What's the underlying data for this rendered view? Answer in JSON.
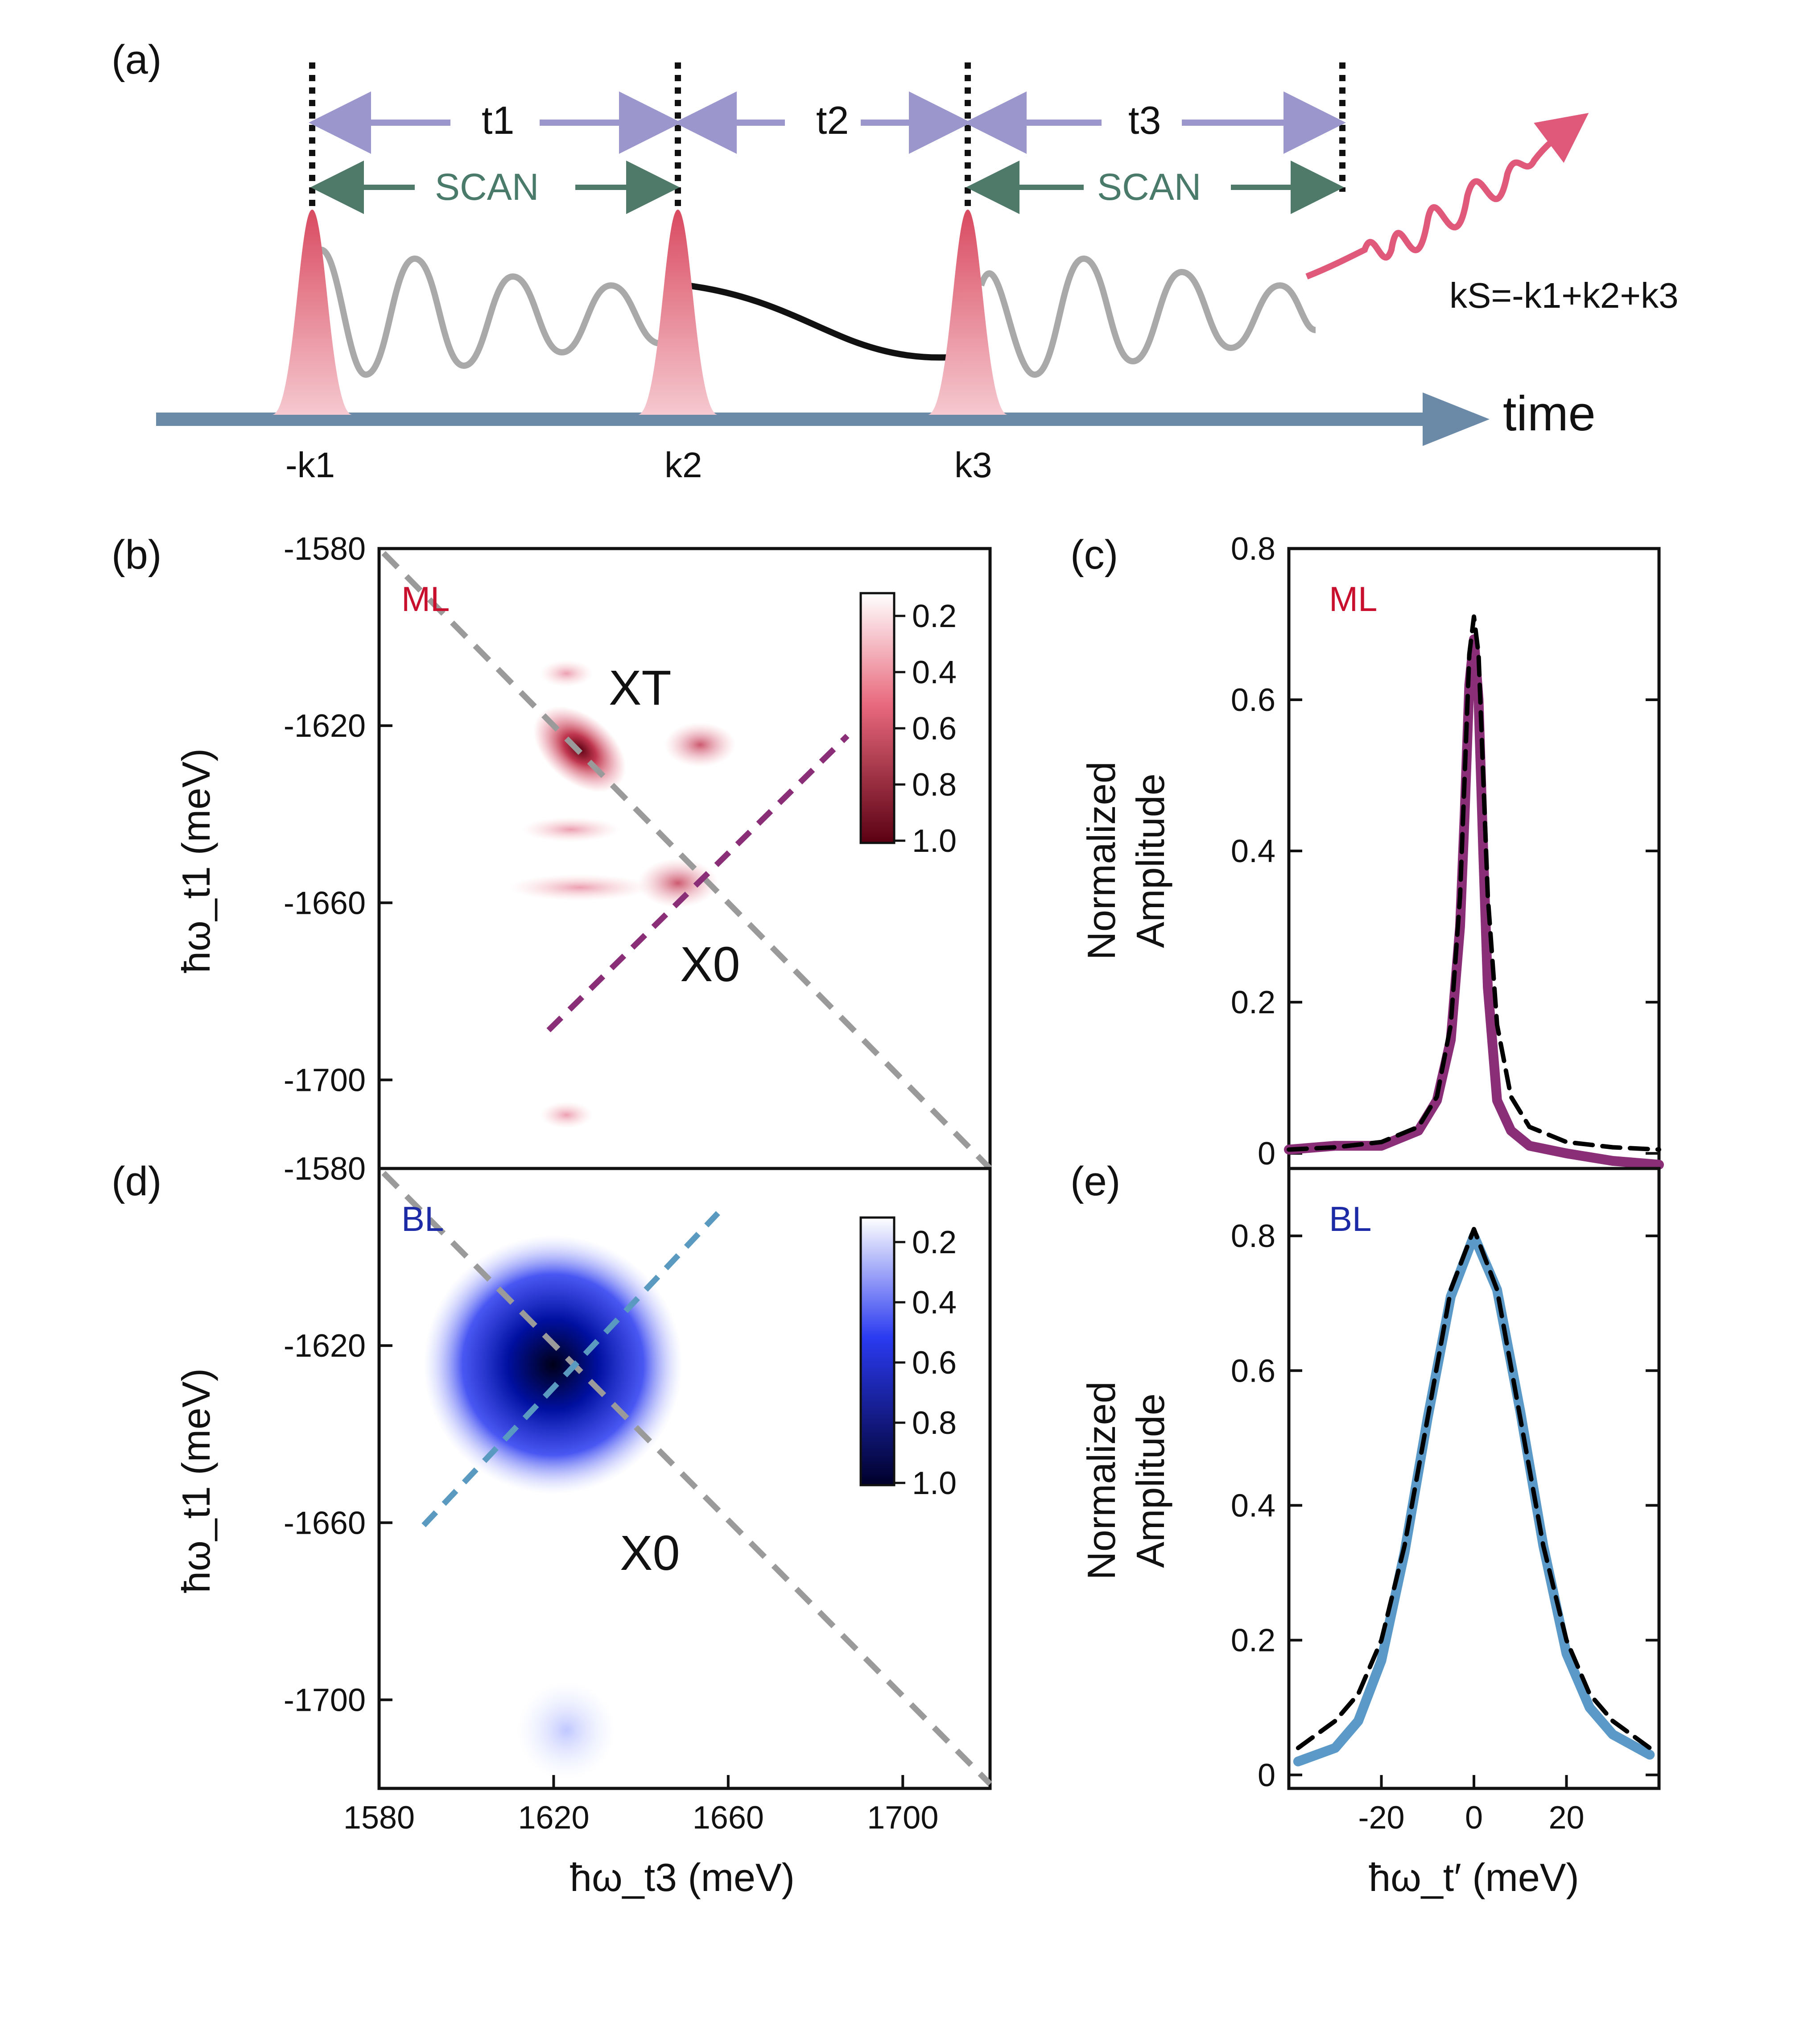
{
  "panels": {
    "a": {
      "label": "(a)",
      "time_label": "time",
      "intervals": [
        "t1",
        "t2",
        "t3"
      ],
      "scan_label": "SCAN",
      "pulse_labels": [
        "-k1",
        "k2",
        "k3"
      ],
      "signal_label": "kS=-k1+k2+k3"
    },
    "b": {
      "label": "(b)",
      "sample": "ML",
      "peak_labels": [
        "XT",
        "X0"
      ],
      "colorbar_ticks": [
        "0.2",
        "0.4",
        "0.6",
        "0.8",
        "1.0"
      ],
      "colormap": {
        "low": "#ffffff",
        "high": "#5a0012"
      },
      "diagonal_color": "#9a9a9a",
      "cut_color": "#8a2e78"
    },
    "c": {
      "label": "(c)",
      "sample": "ML",
      "data_color": "#8a2e78",
      "fit_color": "#000000"
    },
    "d": {
      "label": "(d)",
      "sample": "BL",
      "peak_labels": [
        "X0"
      ],
      "colorbar_ticks": [
        "0.2",
        "0.4",
        "0.6",
        "0.8",
        "1.0"
      ],
      "colormap": {
        "low": "#ffffff",
        "high": "#00002a"
      },
      "diagonal_color": "#9a9a9a",
      "cut_color": "#5a9ac0"
    },
    "e": {
      "label": "(e)",
      "sample": "BL",
      "data_color": "#5b9ac8",
      "fit_color": "#000000"
    }
  },
  "chart_data": [
    {
      "type": "heatmap",
      "panel": "b",
      "ylabel": "ħω_t1 (meV)",
      "yticks": [
        "-1580",
        "-1620",
        "-1660",
        "-1700"
      ],
      "xlim": [
        1580,
        1720
      ],
      "ylim": [
        -1580,
        -1720
      ],
      "peaks": [
        {
          "name": "XT",
          "x": 1625,
          "y": -1625,
          "amp": 1.0
        },
        {
          "name": "X0",
          "x": 1653,
          "y": -1657,
          "amp": 0.55
        },
        {
          "name": "cross",
          "x": 1652,
          "y": -1624,
          "amp": 0.35
        }
      ]
    },
    {
      "type": "line",
      "panel": "c",
      "ylabel": "Normalized Amplitude",
      "xlim": [
        -40,
        40
      ],
      "ylim": [
        -0.02,
        0.8
      ],
      "yticks": [
        "0",
        "0.2",
        "0.4",
        "0.6",
        "0.8"
      ],
      "series": [
        {
          "name": "data",
          "x": [
            -40,
            -30,
            -20,
            -12,
            -8,
            -5,
            -3,
            -2,
            -1,
            0,
            1,
            2,
            3,
            5,
            8,
            12,
            20,
            30,
            40
          ],
          "y": [
            0.005,
            0.01,
            0.01,
            0.03,
            0.07,
            0.15,
            0.3,
            0.45,
            0.62,
            0.68,
            0.6,
            0.4,
            0.22,
            0.07,
            0.03,
            0.01,
            0.0,
            -0.01,
            -0.015
          ]
        },
        {
          "name": "fit",
          "x": [
            -40,
            -30,
            -20,
            -12,
            -8,
            -5,
            -3,
            -2,
            -1,
            0,
            1,
            2,
            3,
            5,
            8,
            12,
            20,
            30,
            40
          ],
          "y": [
            0.005,
            0.008,
            0.015,
            0.035,
            0.075,
            0.17,
            0.34,
            0.5,
            0.66,
            0.71,
            0.66,
            0.5,
            0.34,
            0.17,
            0.075,
            0.035,
            0.015,
            0.008,
            0.005
          ]
        }
      ]
    },
    {
      "type": "heatmap",
      "panel": "d",
      "xlabel": "ħω_t3 (meV)",
      "ylabel": "ħω_t1 (meV)",
      "xticks": [
        "1580",
        "1620",
        "1660",
        "1700"
      ],
      "yticks": [
        "-1580",
        "-1620",
        "-1660",
        "-1700"
      ],
      "xlim": [
        1580,
        1720
      ],
      "ylim": [
        -1580,
        -1720
      ],
      "peaks": [
        {
          "name": "X0",
          "x": 1623,
          "y": -1624,
          "amp": 1.0
        },
        {
          "name": "low",
          "x": 1622,
          "y": -1705,
          "amp": 0.12
        }
      ]
    },
    {
      "type": "line",
      "panel": "e",
      "xlabel": "ħω_t′ (meV)",
      "ylabel": "Normalized Amplitude",
      "xlim": [
        -40,
        40
      ],
      "ylim": [
        -0.02,
        0.9
      ],
      "xticks": [
        "-20",
        "0",
        "20"
      ],
      "yticks": [
        "0",
        "0.2",
        "0.4",
        "0.6",
        "0.8"
      ],
      "series": [
        {
          "name": "data",
          "x": [
            -38,
            -30,
            -25,
            -20,
            -15,
            -10,
            -5,
            0,
            5,
            10,
            15,
            20,
            25,
            30,
            38
          ],
          "y": [
            0.02,
            0.04,
            0.08,
            0.17,
            0.33,
            0.53,
            0.71,
            0.8,
            0.72,
            0.54,
            0.34,
            0.18,
            0.1,
            0.06,
            0.03
          ]
        },
        {
          "name": "fit",
          "x": [
            -38,
            -30,
            -25,
            -20,
            -15,
            -10,
            -5,
            0,
            5,
            10,
            15,
            20,
            25,
            30,
            38
          ],
          "y": [
            0.04,
            0.08,
            0.12,
            0.2,
            0.34,
            0.53,
            0.72,
            0.81,
            0.72,
            0.53,
            0.34,
            0.2,
            0.12,
            0.08,
            0.04
          ]
        }
      ]
    }
  ]
}
